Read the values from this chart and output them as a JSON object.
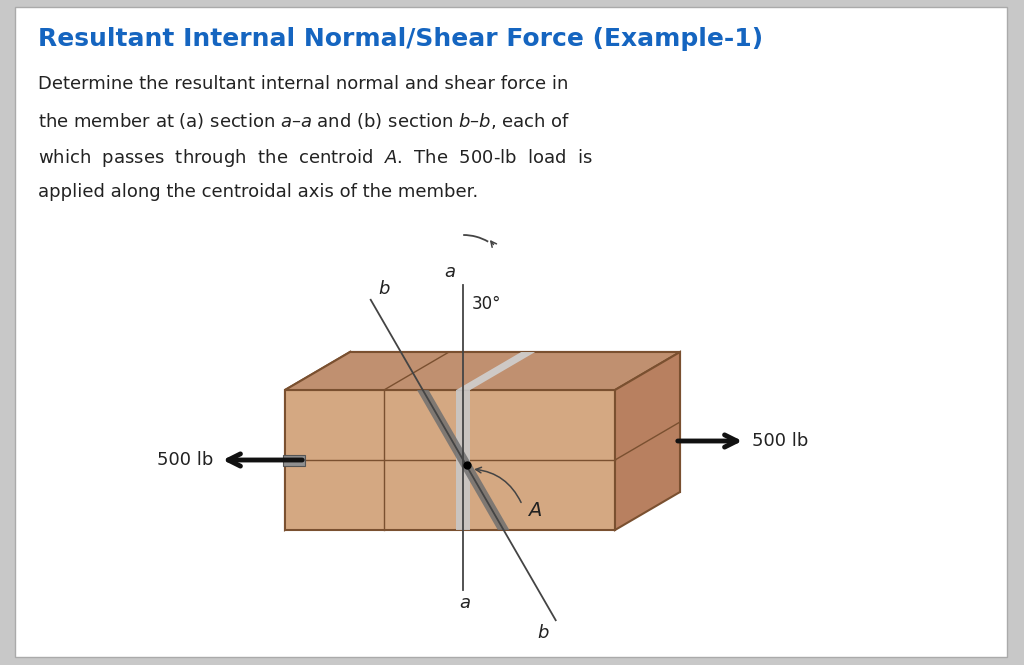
{
  "title": "Resultant Internal Normal/Shear Force (Example-1)",
  "title_color": "#1565C0",
  "bg_color": "#C8C8C8",
  "panel_color": "#FFFFFF",
  "box_front_color": "#D4A882",
  "box_top_color": "#C09070",
  "box_right_color": "#B88060",
  "box_edge_color": "#7A5030",
  "section_aa_color": "#C8C8C8",
  "section_bb_color": "#707070",
  "arrow_color": "#111111",
  "label_color": "#222222",
  "force_label": "500 lb",
  "angle_label": "30°"
}
